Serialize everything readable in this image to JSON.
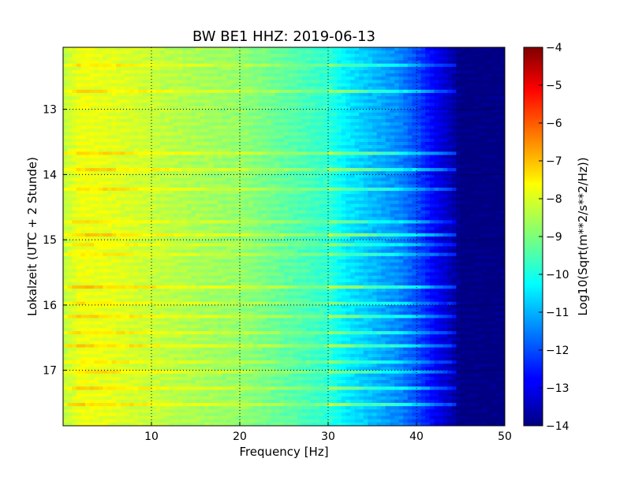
{
  "chart_data": {
    "type": "heatmap",
    "title": "BW BE1 HHZ: 2019-06-13",
    "xlabel": "Frequency [Hz]",
    "ylabel": "Lokalzeit (UTC + 2 Stunde)",
    "colorbar_label": "Log10(Sqrt(m**2/s**2/Hz))",
    "colormap": "jet",
    "grid": true,
    "xlim": [
      0,
      50
    ],
    "ylim": [
      12.05,
      17.85
    ],
    "y_inverted": true,
    "clim": [
      -14,
      -4
    ],
    "x_ticks": [
      10,
      20,
      30,
      40,
      50
    ],
    "y_ticks": [
      13,
      14,
      15,
      16,
      17
    ],
    "colorbar_ticks": [
      -4,
      -5,
      -6,
      -7,
      -8,
      -9,
      -10,
      -11,
      -12,
      -13,
      -14
    ],
    "profile": {
      "frequency_hz": [
        0,
        2,
        5,
        10,
        15,
        20,
        25,
        30,
        32,
        35,
        38,
        40,
        42,
        44,
        45,
        50
      ],
      "log_amplitude": [
        -8.4,
        -7.9,
        -8.0,
        -8.3,
        -8.6,
        -8.8,
        -9.3,
        -9.8,
        -10.4,
        -10.9,
        -11.4,
        -12.0,
        -12.8,
        -13.5,
        -14.0,
        -14.0
      ]
    },
    "bands": [
      {
        "time": 12.34,
        "delta": 0.7
      },
      {
        "time": 12.75,
        "delta": 0.9
      },
      {
        "time": 13.15,
        "delta": 0.8
      },
      {
        "time": 13.4,
        "delta": 0.7
      },
      {
        "time": 13.7,
        "delta": 1.0
      },
      {
        "time": 13.95,
        "delta": 1.0
      },
      {
        "time": 14.22,
        "delta": 0.8
      },
      {
        "time": 14.55,
        "delta": 0.8
      },
      {
        "time": 14.75,
        "delta": 0.7
      },
      {
        "time": 14.95,
        "delta": 1.1
      },
      {
        "time": 15.1,
        "delta": 0.7
      },
      {
        "time": 15.25,
        "delta": 0.7
      },
      {
        "time": 15.75,
        "delta": 1.1
      },
      {
        "time": 16.0,
        "delta": 0.7
      },
      {
        "time": 16.18,
        "delta": 0.9
      },
      {
        "time": 16.45,
        "delta": 0.8
      },
      {
        "time": 16.65,
        "delta": 1.0
      },
      {
        "time": 16.9,
        "delta": 0.7
      },
      {
        "time": 17.05,
        "delta": 0.8
      },
      {
        "time": 17.3,
        "delta": 0.9
      },
      {
        "time": 17.55,
        "delta": 1.0
      }
    ]
  }
}
